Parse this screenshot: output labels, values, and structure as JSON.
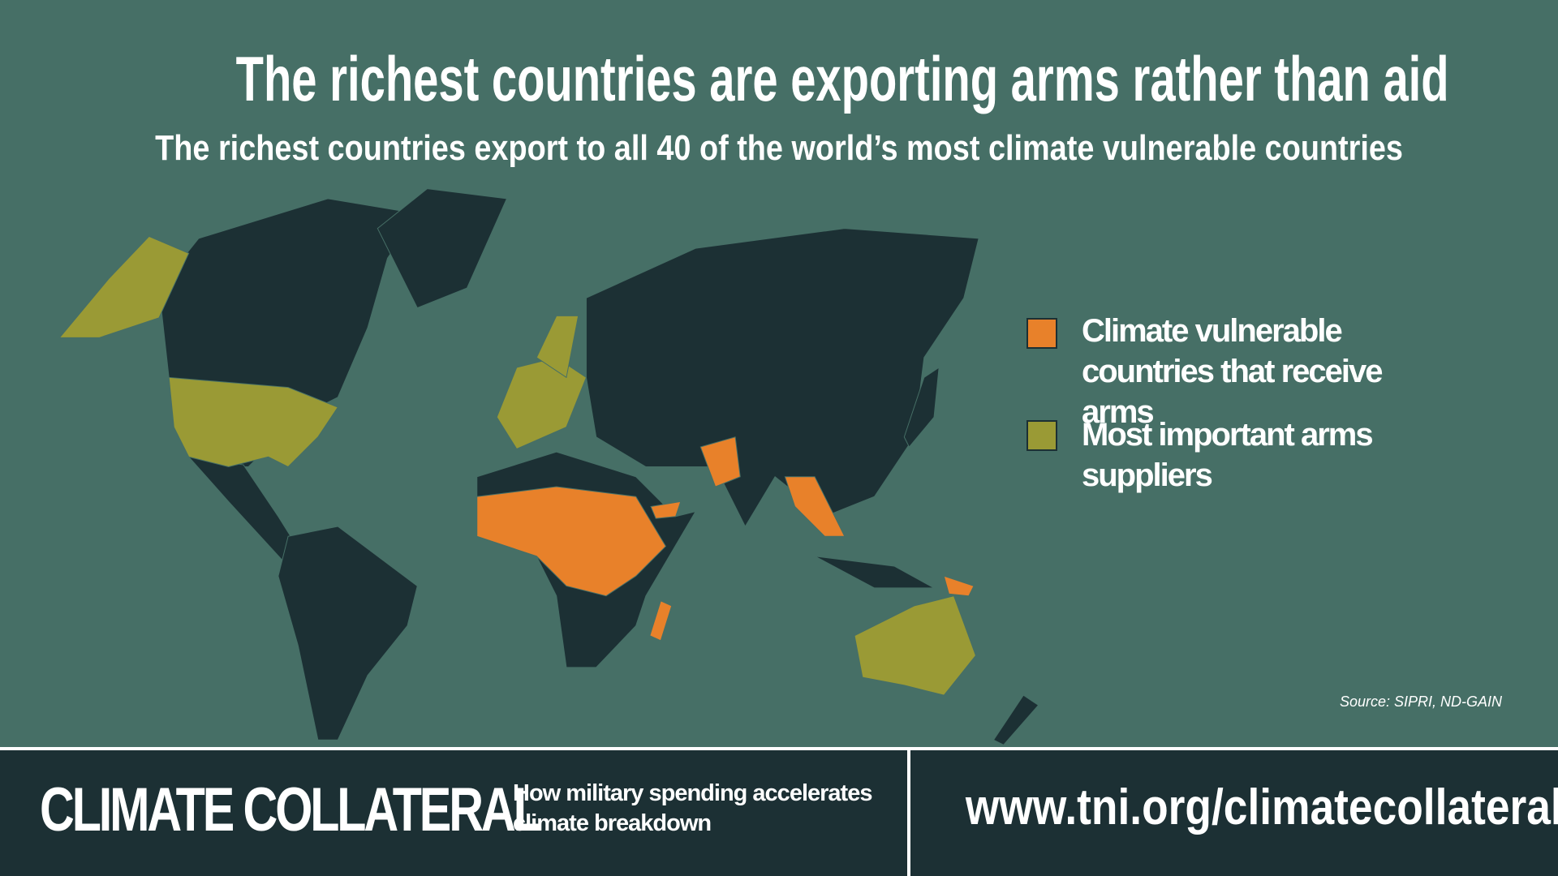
{
  "header": {
    "title": "The richest countries are exporting arms rather than aid",
    "subtitle": "The richest countries export to all 40 of the world’s most climate vulnerable countries"
  },
  "legend": {
    "items": [
      {
        "label": "Climate vulnerable countries that receive arms",
        "color": "#e8812a"
      },
      {
        "label": "Most important arms suppliers",
        "color": "#9a9a35"
      }
    ]
  },
  "source": "Source: SIPRI, ND-GAIN",
  "footer": {
    "brand": "CLIMATE COLLATERAL",
    "tagline": "How military spending accelerates climate breakdown",
    "url": "www.tni.org/climatecollateral"
  }
}
